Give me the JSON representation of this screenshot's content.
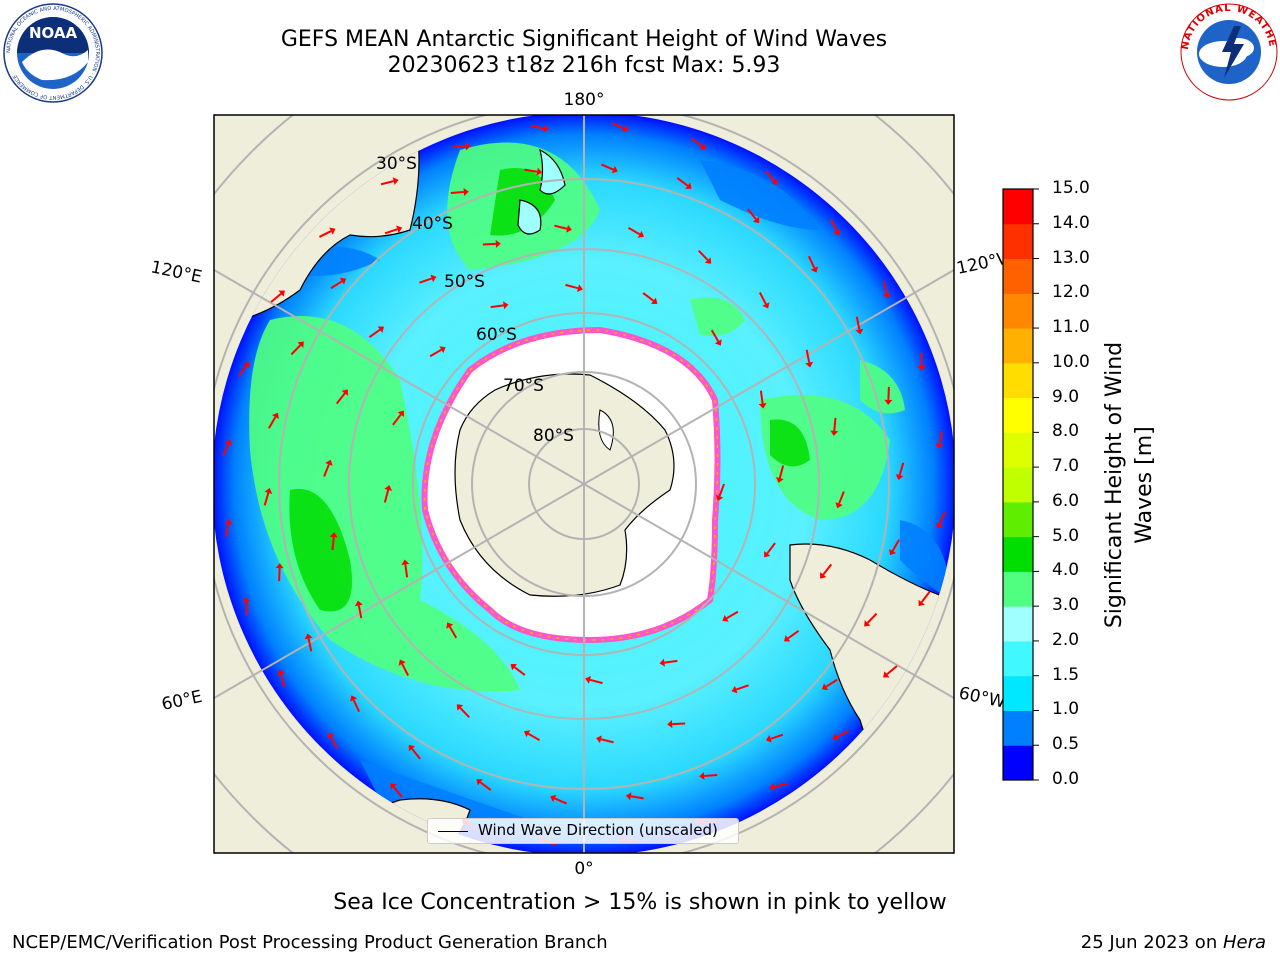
{
  "header": {
    "title_line1": "GEFS MEAN Antarctic Significant Height of Wind Waves",
    "title_line2": "20230623 t18z 216h fcst   Max: 5.93"
  },
  "logos": {
    "left": "NOAA",
    "left_ring_text": "NATIONAL OCEANIC AND ATMOSPHERIC ADMINISTRATION · U.S. DEPARTMENT OF COMMERCE",
    "right_ring_text": "NATIONAL WEATHER SERVICE"
  },
  "map": {
    "projection": "south-polar-stereographic",
    "longitude_labels": {
      "top": "180°",
      "left_upper": "120°E",
      "right_upper": "120°W",
      "left_lower": "60°E",
      "right_lower": "60°W",
      "bottom": "0°"
    },
    "latitude_labels": [
      "30°S",
      "40°S",
      "50°S",
      "60°S",
      "70°S",
      "80°S"
    ],
    "colors": {
      "land": "#efeedb",
      "ice_shelf": "#ffffff",
      "sea_ice_edge": "#ff55cc",
      "arrows": "#ff0000",
      "gridlines": "#b3b3b3"
    },
    "legend": {
      "label": "Wind Wave Direction (unscaled)"
    }
  },
  "colorbar": {
    "label": "Significant Height of Wind Waves [m]",
    "ticks": [
      "0.0",
      "0.5",
      "1.0",
      "1.5",
      "2.0",
      "3.0",
      "4.0",
      "5.0",
      "6.0",
      "7.0",
      "8.0",
      "9.0",
      "10.0",
      "11.0",
      "12.0",
      "13.0",
      "14.0",
      "15.0"
    ],
    "colors": [
      "#0000ff",
      "#0080ff",
      "#00e8ff",
      "#40f8ff",
      "#a0ffff",
      "#50ff80",
      "#00dd00",
      "#60ee00",
      "#c0ff00",
      "#ddff00",
      "#ffff00",
      "#ffdd00",
      "#ffb000",
      "#ff8800",
      "#ff6000",
      "#ff3000",
      "#ff0000"
    ]
  },
  "caption": "Sea Ice Concentration > 15% is shown in pink to yellow",
  "footer": {
    "left": "NCEP/EMC/Verification Post Processing Product Generation Branch",
    "right_prefix": "25 Jun 2023 on ",
    "right_italic": "Hera"
  }
}
